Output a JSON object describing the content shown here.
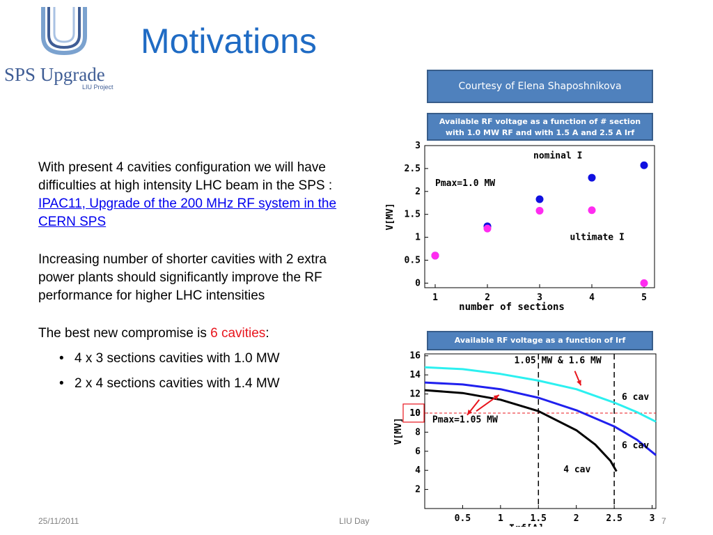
{
  "logo": {
    "text": "SPS Upgrade",
    "sub": "LIU Project"
  },
  "title": "Motivations",
  "courtesy": "Courtesy of Elena Shaposhnikova",
  "chart1_caption_line1": "Available RF voltage as a function of # section",
  "chart1_caption_line2": "with 1.0 MW RF and with 1.5 A and 2.5 A Irf",
  "chart2_caption": "Available RF voltage as a function of Irf",
  "body": {
    "p1_text": "With present 4 cavities configuration we will have difficulties at high intensity LHC beam in the  SPS : ",
    "p1_link": "IPAC11, Upgrade of the 200 MHz RF system in the CERN SPS",
    "p2": "Increasing number of shorter cavities with 2 extra power plants should significantly improve the RF performance for higher LHC intensities",
    "p3_text": "The best new compromise is ",
    "p3_red": "6 cavities",
    "p3_colon": ":",
    "bullets": [
      "4 x 3 sections cavities with 1.0 MW",
      "2 x 4 sections cavities with 1.4 MW"
    ],
    "bullet_glyph": "•"
  },
  "footer": {
    "date": "25/11/2011",
    "center": "LIU Day",
    "page": "7"
  },
  "chart_data": [
    {
      "type": "scatter",
      "xlabel": "number of sections",
      "ylabel": "V[MV]",
      "xlim": [
        0.8,
        5.2
      ],
      "ylim": [
        -0.1,
        3
      ],
      "x_ticks": [
        "1",
        "2",
        "3",
        "4",
        "5"
      ],
      "y_ticks": [
        "0",
        "0.5",
        "1",
        "1.5",
        "2",
        "2.5",
        "3"
      ],
      "annotations": [
        "nominal I",
        "Pmax=1.0 MW",
        "ultimate I"
      ],
      "series": [
        {
          "color": "#1010e0",
          "x": [
            1,
            2,
            3,
            4,
            5
          ],
          "y": [
            0.6,
            1.24,
            1.83,
            2.3,
            2.57
          ]
        },
        {
          "color": "#ff2cf0",
          "x": [
            1,
            2,
            3,
            4,
            5
          ],
          "y": [
            0.6,
            1.19,
            1.58,
            1.59,
            0.0
          ]
        }
      ]
    },
    {
      "type": "line",
      "xlabel": "Irf[A]",
      "ylabel": "V[MV]",
      "xlim": [
        0,
        3.05
      ],
      "ylim": [
        0,
        16.2
      ],
      "x_ticks": [
        "0.5",
        "1",
        "1.5",
        "2",
        "2.5",
        "3"
      ],
      "y_ticks": [
        "2",
        "4",
        "6",
        "8",
        "10",
        "12",
        "14",
        "16"
      ],
      "annotations": [
        "1.05 MW & 1.6 MW",
        "6 cav",
        "Pmax=1.05 MW",
        "6 cav",
        "4 cav",
        "10"
      ],
      "reference_line_y": 10,
      "vertical_markers_x": [
        1.5,
        2.5
      ],
      "series": [
        {
          "color": "#2cf0f0",
          "x": [
            0,
            0.5,
            1,
            1.5,
            2,
            2.5,
            2.8,
            3.05
          ],
          "y": [
            14.8,
            14.6,
            14.1,
            13.4,
            12.5,
            11.1,
            10.1,
            9.1
          ]
        },
        {
          "color": "#2020ee",
          "x": [
            0,
            0.5,
            1,
            1.5,
            2,
            2.5,
            2.8,
            3.05
          ],
          "y": [
            13.2,
            13.0,
            12.5,
            11.6,
            10.3,
            8.6,
            7.2,
            5.6
          ]
        },
        {
          "color": "#000000",
          "x": [
            0,
            0.5,
            1,
            1.5,
            2,
            2.25,
            2.45,
            2.53
          ],
          "y": [
            12.4,
            12.1,
            11.4,
            10.2,
            8.2,
            6.7,
            5.0,
            3.9
          ]
        }
      ]
    }
  ],
  "colors": {
    "title": "#1f6bc4",
    "box": "#4f81bd",
    "link": "#0000ee",
    "accent_red": "#e8141c"
  }
}
